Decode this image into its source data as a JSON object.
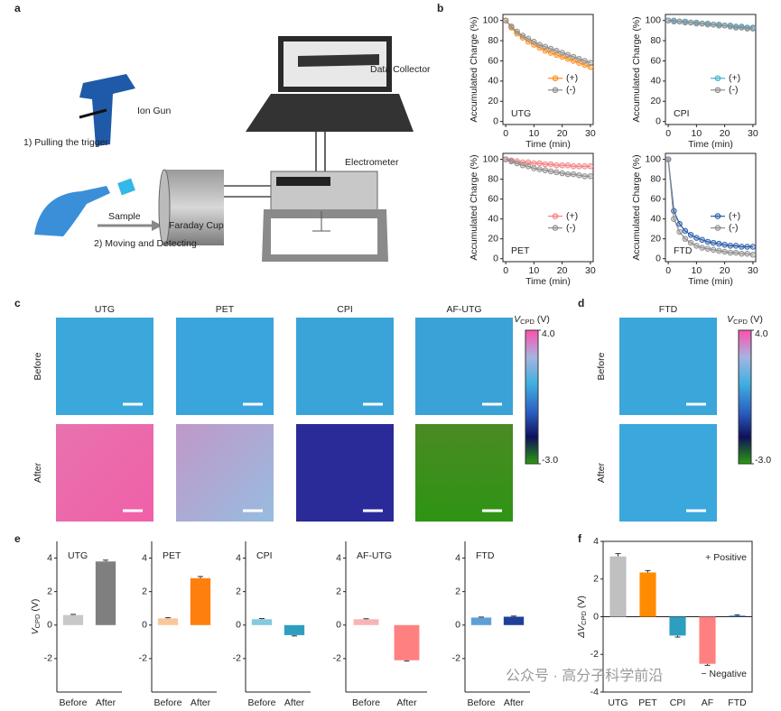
{
  "panel_labels": [
    "a",
    "b",
    "c",
    "d",
    "e",
    "f"
  ],
  "diagram": {
    "ion_gun": "Ion Gun",
    "step1": "1) Pulling the trigger",
    "sample": "Sample",
    "step2": "2) Moving and Detecting",
    "faraday_cup": "Faraday Cup",
    "data_collector": "Data Collector",
    "electrometer": "Electrometer"
  },
  "afm": {
    "c_samples": [
      "UTG",
      "PET",
      "CPI",
      "AF-UTG"
    ],
    "d_samples": [
      "FTD"
    ],
    "rows": [
      "Before",
      "After"
    ],
    "colorbar": {
      "label_symbol": "V",
      "label_sub": "CPD",
      "label_unit": " (V)",
      "lim": [
        -3,
        4
      ],
      "ticks": [
        {
          "value": 4,
          "label": "4.0"
        },
        {
          "value": -3,
          "label": "-3.0"
        }
      ]
    }
  },
  "chart_data": [
    {
      "type": "line",
      "annotation": "UTG",
      "xlabel": "Time (min)",
      "ylabel": "Accumulated Charge (%)",
      "x": [
        0,
        2,
        4,
        6,
        8,
        10,
        12,
        14,
        16,
        18,
        20,
        22,
        24,
        26,
        28,
        30
      ],
      "xlim": [
        -1,
        31
      ],
      "xticks": [
        0,
        10,
        20,
        30
      ],
      "ylim": [
        -3,
        106
      ],
      "yticks": [
        0,
        20,
        40,
        60,
        80,
        100
      ],
      "series": [
        {
          "name": "(+)",
          "color": "#ff8c1a",
          "values": [
            100,
            93,
            87,
            83,
            79,
            76,
            73,
            70,
            68,
            66,
            64,
            62,
            60,
            58,
            56,
            54
          ]
        },
        {
          "name": "(-)",
          "color": "#8c8c8c",
          "values": [
            100,
            94,
            89,
            85,
            82,
            79,
            76,
            74,
            72,
            70,
            68,
            66,
            64,
            62,
            60,
            58
          ]
        }
      ]
    },
    {
      "type": "line",
      "annotation": "CPI",
      "xlabel": "Time (min)",
      "ylabel": "Accumulated Charge (%)",
      "x": [
        0,
        2,
        4,
        6,
        8,
        10,
        12,
        14,
        16,
        18,
        20,
        22,
        24,
        26,
        28,
        30
      ],
      "xlim": [
        -1,
        31
      ],
      "xticks": [
        0,
        10,
        20,
        30
      ],
      "ylim": [
        -3,
        106
      ],
      "yticks": [
        0,
        20,
        40,
        60,
        80,
        100
      ],
      "series": [
        {
          "name": "(+)",
          "color": "#4ab0d0",
          "values": [
            100,
            100,
            99,
            99,
            98,
            98,
            97,
            97,
            96,
            96,
            95,
            95,
            94,
            94,
            93,
            93
          ]
        },
        {
          "name": "(-)",
          "color": "#8c8c8c",
          "values": [
            100,
            99,
            99,
            98,
            98,
            97,
            97,
            96,
            96,
            95,
            95,
            94,
            93,
            93,
            92,
            92
          ]
        }
      ]
    },
    {
      "type": "line",
      "annotation": "PET",
      "xlabel": "Time (min)",
      "ylabel": "Accumulated Charge (%)",
      "x": [
        0,
        2,
        4,
        6,
        8,
        10,
        12,
        14,
        16,
        18,
        20,
        22,
        24,
        26,
        28,
        30
      ],
      "xlim": [
        -1,
        31
      ],
      "xticks": [
        0,
        10,
        20,
        30
      ],
      "ylim": [
        -3,
        106
      ],
      "yticks": [
        0,
        20,
        40,
        60,
        80,
        100
      ],
      "series": [
        {
          "name": "(+)",
          "color": "#f48080",
          "values": [
            100,
            99,
            98,
            97,
            97,
            96,
            96,
            95,
            95,
            94,
            94,
            94,
            93,
            93,
            93,
            93
          ]
        },
        {
          "name": "(-)",
          "color": "#8c8c8c",
          "values": [
            100,
            98,
            96,
            94,
            93,
            91,
            90,
            89,
            88,
            87,
            86,
            85,
            85,
            84,
            83,
            83
          ]
        }
      ]
    },
    {
      "type": "line",
      "annotation": "FTD",
      "xlabel": "Time (min)",
      "ylabel": "Accumulated Charge (%)",
      "x": [
        0,
        2,
        4,
        6,
        8,
        10,
        12,
        14,
        16,
        18,
        20,
        22,
        24,
        26,
        28,
        30
      ],
      "xlim": [
        -1,
        31
      ],
      "xticks": [
        0,
        10,
        20,
        30
      ],
      "ylim": [
        -3,
        106
      ],
      "yticks": [
        0,
        20,
        40,
        60,
        80,
        100
      ],
      "series": [
        {
          "name": "(+)",
          "color": "#2a5caa",
          "values": [
            100,
            48,
            35,
            28,
            24,
            21,
            19,
            17,
            16,
            15,
            14,
            13,
            13,
            12,
            12,
            12
          ]
        },
        {
          "name": "(-)",
          "color": "#8c8c8c",
          "values": [
            100,
            40,
            27,
            20,
            16,
            13,
            11,
            10,
            9,
            8,
            7,
            6,
            6,
            5,
            5,
            4
          ]
        }
      ]
    },
    {
      "type": "bar",
      "title": "UTG",
      "ylabel_symbol": "V",
      "ylabel_sub": "CPD",
      "ylabel_unit": " (V)",
      "categories": [
        "Before",
        "After"
      ],
      "values": [
        0.6,
        3.8
      ],
      "errors": [
        0.04,
        0.08
      ],
      "colors": [
        "#c8c8c8",
        "#7f7f7f"
      ],
      "ylim": [
        -4,
        5
      ],
      "yticks": [
        -2,
        0,
        2,
        4
      ]
    },
    {
      "type": "bar",
      "title": "PET",
      "categories": [
        "Before",
        "After"
      ],
      "values": [
        0.4,
        2.8
      ],
      "errors": [
        0.04,
        0.1
      ],
      "colors": [
        "#f8c89c",
        "#ff7f0e"
      ],
      "ylim": [
        -4,
        5
      ],
      "yticks": [
        -2,
        0,
        2,
        4
      ]
    },
    {
      "type": "bar",
      "title": "CPI",
      "categories": [
        "Before",
        "After"
      ],
      "values": [
        0.35,
        -0.6
      ],
      "errors": [
        0.04,
        0.05
      ],
      "colors": [
        "#84c9dc",
        "#2e9ec0"
      ],
      "ylim": [
        -4,
        5
      ],
      "yticks": [
        -2,
        0,
        2,
        4
      ]
    },
    {
      "type": "bar",
      "title": "AF-UTG",
      "categories": [
        "Before",
        "After"
      ],
      "values": [
        0.35,
        -2.1
      ],
      "errors": [
        0.03,
        0.05
      ],
      "colors": [
        "#f8b4b4",
        "#ff8080"
      ],
      "ylim": [
        -4,
        5
      ],
      "yticks": [
        -2,
        0,
        2,
        4
      ]
    },
    {
      "type": "bar",
      "title": "FTD",
      "categories": [
        "Before",
        "After"
      ],
      "values": [
        0.45,
        0.5
      ],
      "errors": [
        0.03,
        0.04
      ],
      "colors": [
        "#5f9fd8",
        "#1f3f9a"
      ],
      "ylim": [
        -4,
        5
      ],
      "yticks": [
        -2,
        0,
        2,
        4
      ]
    },
    {
      "type": "bar",
      "ylabel_symbol": "ΔV",
      "ylabel_sub": "CPD",
      "ylabel_unit": " (V)",
      "annotations": [
        "+ Positive",
        "− Negative"
      ],
      "categories": [
        "UTG",
        "PET",
        "CPI",
        "AF",
        "FTD"
      ],
      "values": [
        3.2,
        2.35,
        -1.0,
        -2.5,
        0.05
      ],
      "errors": [
        0.15,
        0.1,
        0.08,
        0.08,
        0.05
      ],
      "colors": [
        "#c0c0c0",
        "#ff8c00",
        "#2e9ec0",
        "#ff8080",
        "#1f4e9f"
      ],
      "ylim": [
        -4,
        4
      ],
      "yticks": [
        -4,
        -2,
        0,
        2,
        4
      ]
    }
  ],
  "watermark": "公众号 · 高分子科学前沿"
}
